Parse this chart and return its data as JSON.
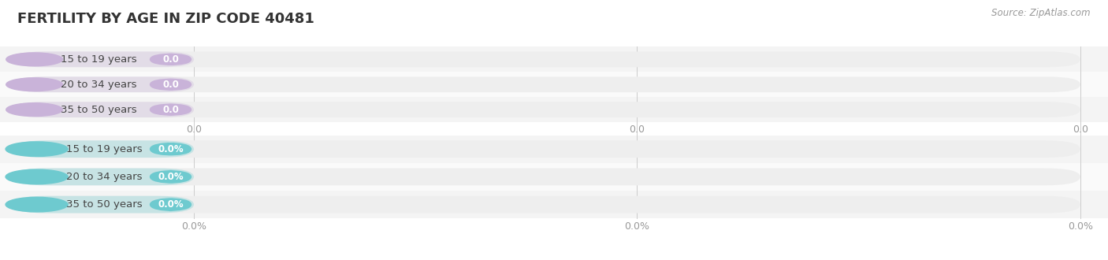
{
  "title": "FERTILITY BY AGE IN ZIP CODE 40481",
  "source": "Source: ZipAtlas.com",
  "background_color": "#ffffff",
  "top_section": {
    "categories": [
      "15 to 19 years",
      "20 to 34 years",
      "35 to 50 years"
    ],
    "values": [
      0.0,
      0.0,
      0.0
    ],
    "bar_color": "#c9b3d9",
    "value_format": "0.0",
    "tick_labels": [
      "0.0",
      "0.0",
      "0.0"
    ]
  },
  "bottom_section": {
    "categories": [
      "15 to 19 years",
      "20 to 34 years",
      "35 to 50 years"
    ],
    "values": [
      0.0,
      0.0,
      0.0
    ],
    "bar_color": "#6ecacf",
    "value_format": "0.0%",
    "tick_labels": [
      "0.0%",
      "0.0%",
      "0.0%"
    ]
  },
  "bar_bg_color": "#eeeeee",
  "row_bg_even": "#f4f4f4",
  "row_bg_odd": "#fafafa",
  "label_font_size": 9.5,
  "value_font_size": 8.5,
  "title_font_size": 13,
  "axis_font_size": 9
}
